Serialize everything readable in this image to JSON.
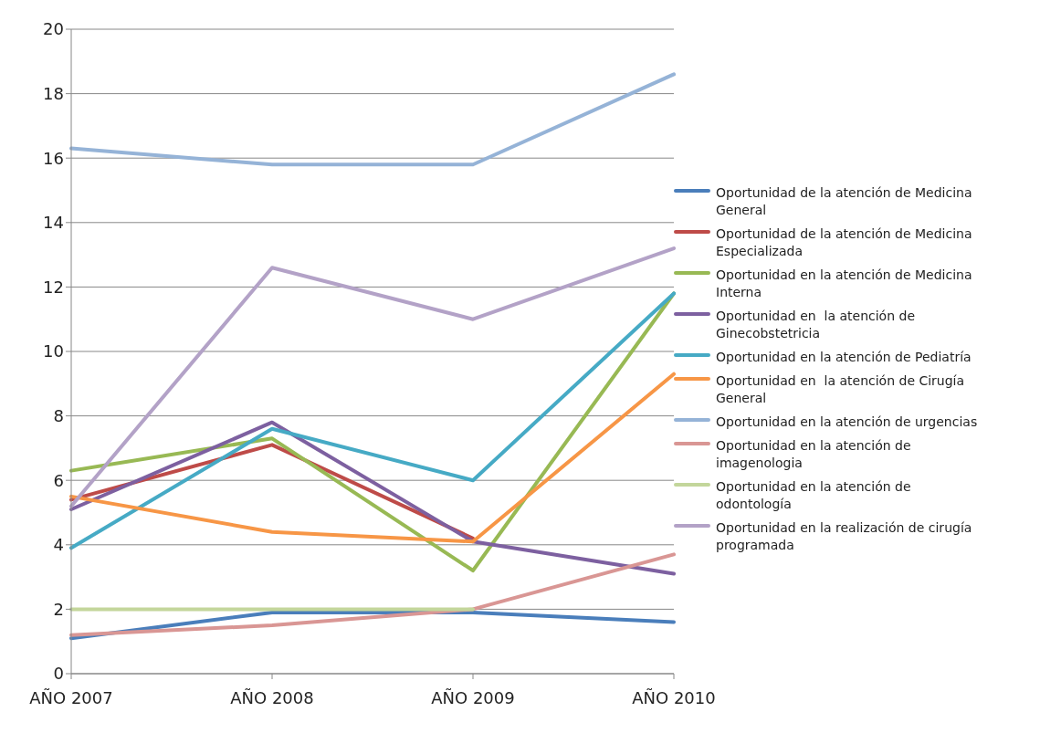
{
  "chart_data": {
    "type": "line",
    "categories": [
      "AÑO 2007",
      "AÑO 2008",
      "AÑO 2009",
      "AÑO 2010"
    ],
    "ylim": [
      0,
      20
    ],
    "yticks": [
      0,
      2,
      4,
      6,
      8,
      10,
      12,
      14,
      16,
      18,
      20
    ],
    "grid": "y",
    "legend": "right",
    "marker": "none",
    "line_style": "solid",
    "series": [
      {
        "name": "Oportunidad de la atención de Medicina General",
        "color": "#4a7ebb",
        "values": [
          1.1,
          1.9,
          1.9,
          1.6
        ]
      },
      {
        "name": "Oportunidad de la atención de Medicina Especializada",
        "color": "#be4b48",
        "values": [
          5.4,
          7.1,
          4.2,
          null
        ]
      },
      {
        "name": "Oportunidad en la atención de Medicina Interna",
        "color": "#98b954",
        "values": [
          6.3,
          7.3,
          3.2,
          11.8
        ]
      },
      {
        "name": "Oportunidad en  la atención de Ginecobstetricia",
        "color": "#7d60a0",
        "values": [
          5.1,
          7.8,
          4.1,
          3.1
        ]
      },
      {
        "name": "Oportunidad en la atención de Pediatría",
        "color": "#46aac5",
        "values": [
          3.9,
          7.6,
          6.0,
          11.8
        ]
      },
      {
        "name": "Oportunidad en  la atención de Cirugía General",
        "color": "#f79646",
        "values": [
          5.5,
          4.4,
          4.1,
          9.3
        ]
      },
      {
        "name": "Oportunidad en la atención de urgencias",
        "color": "#95b3d7",
        "values": [
          16.3,
          15.8,
          15.8,
          18.6
        ]
      },
      {
        "name": "Oportunidad en la atención de imagenologia",
        "color": "#d99694",
        "values": [
          1.2,
          1.5,
          2.0,
          3.7
        ]
      },
      {
        "name": "Oportunidad en la atención de odontología",
        "color": "#c3d69b",
        "values": [
          2,
          2,
          2,
          null
        ]
      },
      {
        "name": "Oportunidad en la realización de cirugía programada",
        "color": "#b3a2c7",
        "values": [
          5.2,
          12.6,
          11.0,
          13.2
        ]
      }
    ]
  }
}
